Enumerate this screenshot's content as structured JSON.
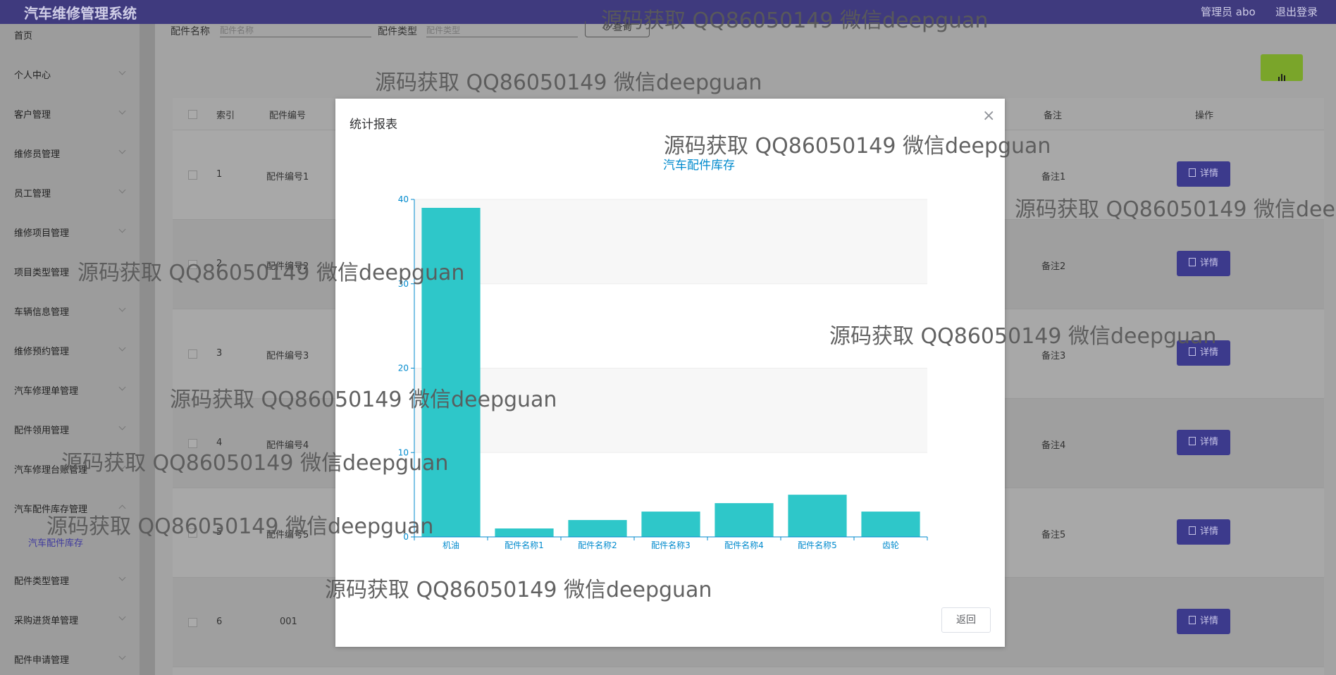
{
  "header": {
    "app_title": "汽车维修管理系统",
    "admin_label": "管理员 abo",
    "logout_label": "退出登录"
  },
  "sidebar": {
    "items": [
      {
        "label": "首页"
      },
      {
        "label": "个人中心"
      },
      {
        "label": "客户管理"
      },
      {
        "label": "维修员管理"
      },
      {
        "label": "员工管理"
      },
      {
        "label": "维修项目管理"
      },
      {
        "label": "项目类型管理"
      },
      {
        "label": "车辆信息管理"
      },
      {
        "label": "维修预约管理"
      },
      {
        "label": "汽车修理单管理"
      },
      {
        "label": "配件领用管理"
      },
      {
        "label": "汽车修理台账管理"
      },
      {
        "label": "汽车配件库存管理"
      },
      {
        "label": "配件类型管理"
      },
      {
        "label": "采购进货单管理"
      },
      {
        "label": "配件申请管理"
      }
    ],
    "active_sub": "汽车配件库存"
  },
  "search": {
    "name_label": "配件名称",
    "name_placeholder": "配件名称",
    "type_label": "配件类型",
    "type_placeholder": "配件类型",
    "query_label": "查询"
  },
  "table": {
    "headers": {
      "index": "索引",
      "code": "配件编号",
      "remark": "备注",
      "action": "操作"
    },
    "rows": [
      {
        "index": "1",
        "code": "配件编号1",
        "remark": "备注1"
      },
      {
        "index": "2",
        "code": "配件编号2",
        "remark": "备注2"
      },
      {
        "index": "3",
        "code": "配件编号3",
        "remark": "备注3"
      },
      {
        "index": "4",
        "code": "配件编号4",
        "remark": "备注4"
      },
      {
        "index": "5",
        "code": "配件编号5",
        "remark": "备注5"
      },
      {
        "index": "6",
        "code": "001",
        "remark": ""
      }
    ],
    "detail_label": "详情"
  },
  "modal": {
    "title": "统计报表",
    "close_glyph": "×",
    "return_label": "返回"
  },
  "chart_data": {
    "type": "bar",
    "title": "汽车配件库存",
    "categories": [
      "机油",
      "配件名称1",
      "配件名称2",
      "配件名称3",
      "配件名称4",
      "配件名称5",
      "齿轮"
    ],
    "values": [
      39,
      1,
      2,
      3,
      4,
      5,
      3
    ],
    "ylim": [
      0,
      40
    ],
    "yticks": [
      0,
      10,
      20,
      30,
      40
    ],
    "bar_color": "#2ec7c9",
    "axis_color": "#008acd",
    "grid": true
  },
  "watermark": {
    "text": "源码获取 QQ86050149 微信deepguan"
  },
  "colors": {
    "header_bg": "#3f3a7e",
    "detail_btn": "#3c3a8c",
    "chart_btn": "#7aa52a"
  }
}
